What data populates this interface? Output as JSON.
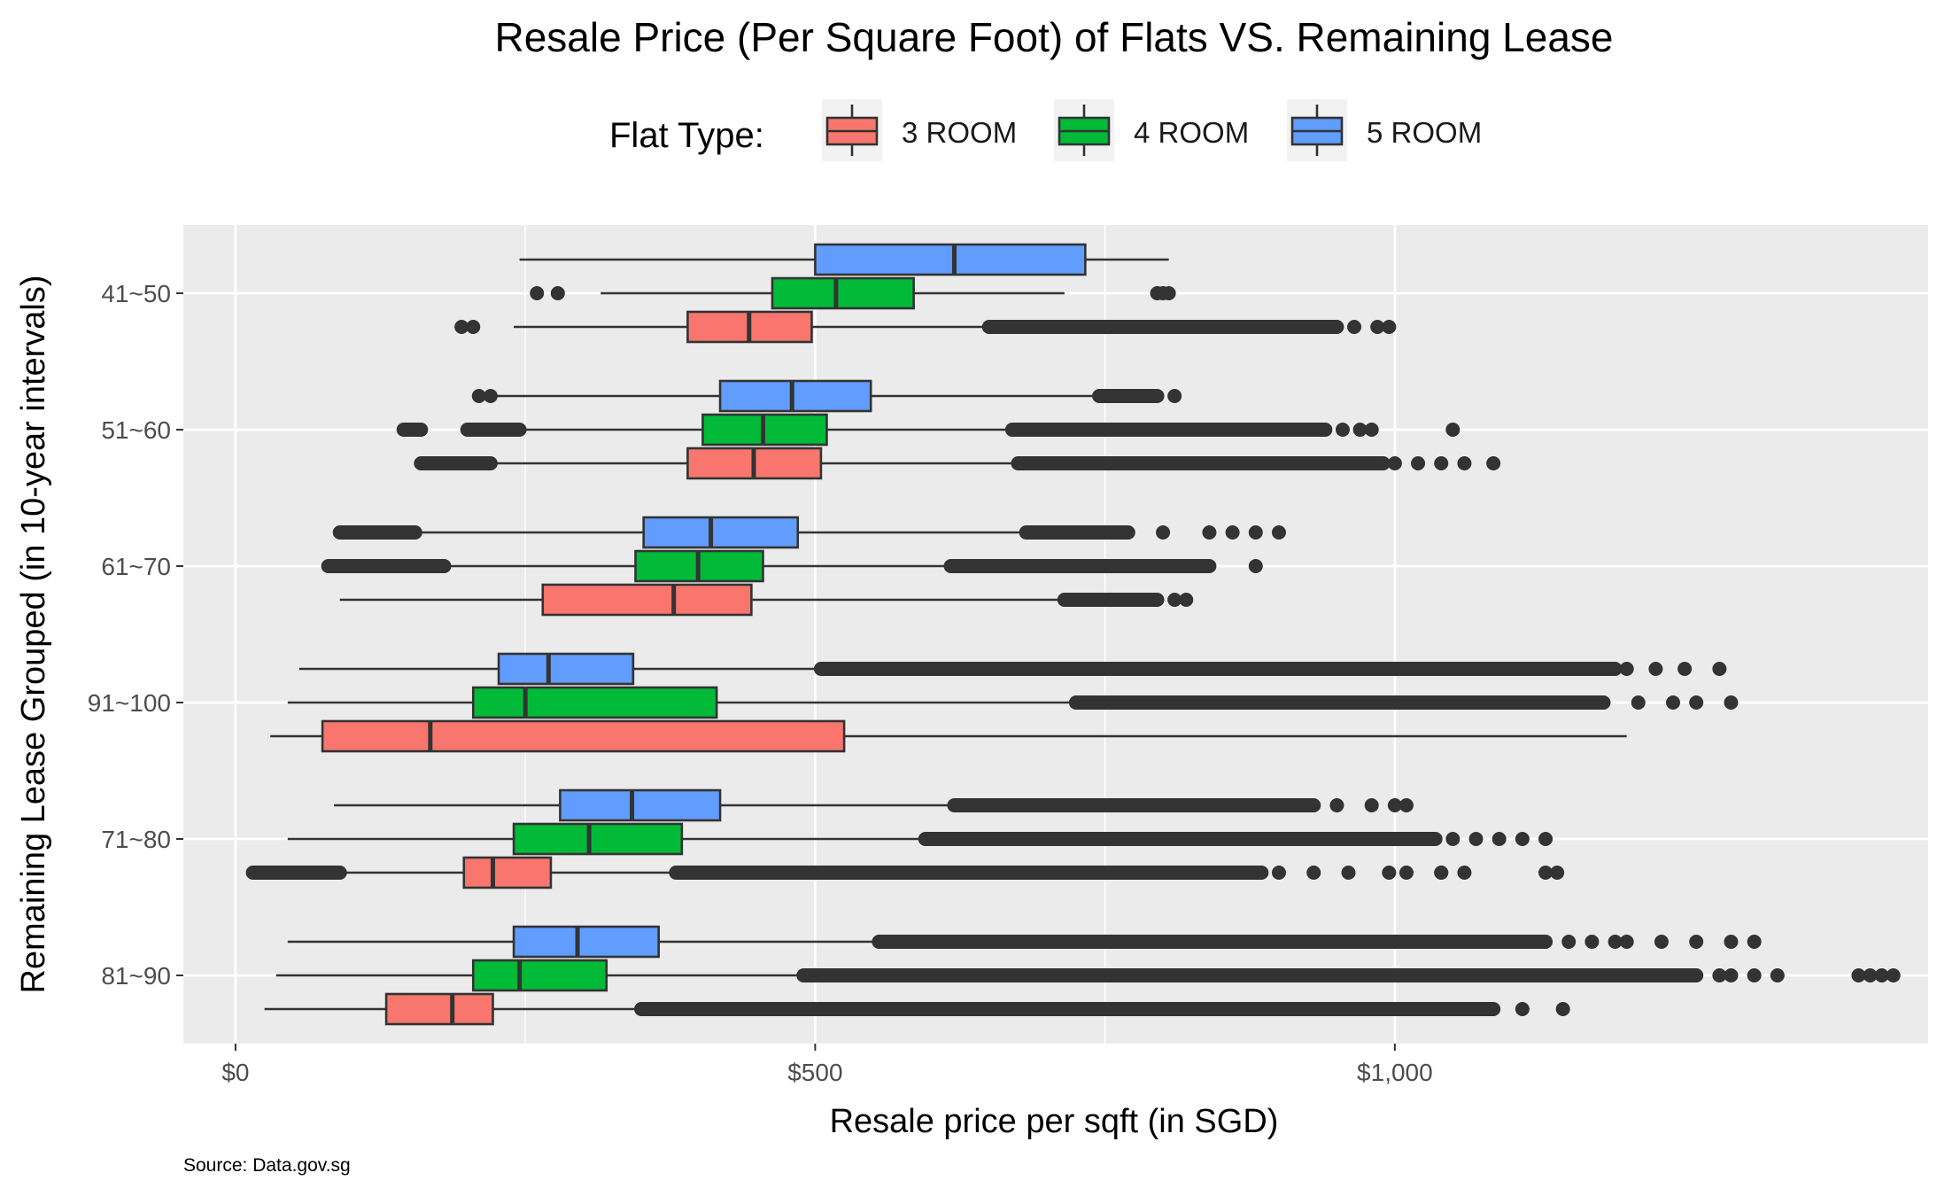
{
  "chart_data": {
    "type": "boxplot",
    "orientation": "horizontal",
    "title": "Resale Price (Per Square Foot) of Flats VS. Remaining Lease",
    "xlabel": "Resale price per sqft (in SGD)",
    "ylabel": "Remaining Lease Grouped (in 10-year intervals)",
    "caption": "Source: Data.gov.sg",
    "legend_title": "Flat Type:",
    "legend_position": "top",
    "grid": true,
    "xlim": [
      -45,
      1460
    ],
    "xticks": [
      0,
      500,
      1000
    ],
    "xtick_labels": [
      "$0",
      "$500",
      "$1,000"
    ],
    "categories": [
      "81~90",
      "71~80",
      "91~100",
      "61~70",
      "51~60",
      "41~50"
    ],
    "colors": {
      "3 ROOM": "#F8766D",
      "4 ROOM": "#00BA38",
      "5 ROOM": "#619CFF",
      "panel": "#EBEBEB",
      "grid": "#FFFFFF",
      "outline": "#333333"
    },
    "series": [
      {
        "name": "3 ROOM",
        "boxes": [
          {
            "category": "81~90",
            "whisker_low": 25,
            "q1": 130,
            "median": 187,
            "q3": 222,
            "whisker_high": 350,
            "outlier_bands": [
              [
                350,
                1085
              ]
            ],
            "outliers": [
              1110,
              1145
            ]
          },
          {
            "category": "71~80",
            "whisker_low": 95,
            "q1": 197,
            "median": 222,
            "q3": 272,
            "whisker_high": 380,
            "outlier_bands": [
              [
                15,
                90
              ],
              [
                380,
                885
              ]
            ],
            "outliers": [
              900,
              930,
              960,
              995,
              1010,
              1040,
              1060,
              1130,
              1140,
              1040
            ]
          },
          {
            "category": "91~100",
            "whisker_low": 30,
            "q1": 75,
            "median": 168,
            "q3": 525,
            "whisker_high": 1200,
            "outlier_bands": [],
            "outliers": []
          },
          {
            "category": "61~70",
            "whisker_low": 90,
            "q1": 265,
            "median": 378,
            "q3": 445,
            "whisker_high": 715,
            "outlier_bands": [
              [
                715,
                795
              ]
            ],
            "outliers": [
              810,
              820
            ]
          },
          {
            "category": "51~60",
            "whisker_low": 220,
            "q1": 390,
            "median": 447,
            "q3": 505,
            "whisker_high": 675,
            "outlier_bands": [
              [
                160,
                220
              ],
              [
                675,
                990
              ]
            ],
            "outliers": [
              1000,
              1020,
              1040,
              1060,
              1085
            ]
          },
          {
            "category": "41~50",
            "whisker_low": 240,
            "q1": 390,
            "median": 443,
            "q3": 497,
            "whisker_high": 650,
            "outlier_bands": [
              [
                650,
                950
              ]
            ],
            "outliers": [
              195,
              205,
              965,
              985,
              995
            ]
          }
        ]
      },
      {
        "name": "4 ROOM",
        "boxes": [
          {
            "category": "81~90",
            "whisker_low": 35,
            "q1": 205,
            "median": 245,
            "q3": 320,
            "whisker_high": 490,
            "outlier_bands": [
              [
                490,
                1260
              ]
            ],
            "outliers": [
              1280,
              1290,
              1310,
              1330,
              1400,
              1410,
              1420,
              1430
            ]
          },
          {
            "category": "71~80",
            "whisker_low": 45,
            "q1": 240,
            "median": 305,
            "q3": 385,
            "whisker_high": 595,
            "outlier_bands": [
              [
                595,
                1035
              ]
            ],
            "outliers": [
              1050,
              1070,
              1090,
              1110,
              1130
            ]
          },
          {
            "category": "91~100",
            "whisker_low": 45,
            "q1": 205,
            "median": 250,
            "q3": 415,
            "whisker_high": 725,
            "outlier_bands": [
              [
                725,
                1180
              ]
            ],
            "outliers": [
              1210,
              1240,
              1260,
              1290
            ]
          },
          {
            "category": "61~70",
            "whisker_low": 80,
            "q1": 345,
            "median": 399,
            "q3": 455,
            "whisker_high": 617,
            "outlier_bands": [
              [
                80,
                180
              ],
              [
                617,
                840
              ]
            ],
            "outliers": [
              880
            ]
          },
          {
            "category": "51~60",
            "whisker_low": 250,
            "q1": 403,
            "median": 455,
            "q3": 510,
            "whisker_high": 670,
            "outlier_bands": [
              [
                145,
                160
              ],
              [
                200,
                245
              ],
              [
                670,
                940
              ]
            ],
            "outliers": [
              955,
              970,
              980,
              1050
            ]
          },
          {
            "category": "41~50",
            "whisker_low": 315,
            "q1": 463,
            "median": 518,
            "q3": 585,
            "whisker_high": 715,
            "outlier_bands": [],
            "outliers": [
              260,
              278,
              795,
              800,
              805
            ]
          }
        ]
      },
      {
        "name": "5 ROOM",
        "boxes": [
          {
            "category": "81~90",
            "whisker_low": 45,
            "q1": 240,
            "median": 295,
            "q3": 365,
            "whisker_high": 555,
            "outlier_bands": [
              [
                555,
                1130
              ]
            ],
            "outliers": [
              1150,
              1170,
              1190,
              1200,
              1230,
              1260,
              1290,
              1310
            ]
          },
          {
            "category": "71~80",
            "whisker_low": 85,
            "q1": 280,
            "median": 342,
            "q3": 418,
            "whisker_high": 620,
            "outlier_bands": [
              [
                620,
                930
              ]
            ],
            "outliers": [
              950,
              980,
              1000,
              1010
            ]
          },
          {
            "category": "91~100",
            "whisker_low": 55,
            "q1": 227,
            "median": 270,
            "q3": 343,
            "whisker_high": 505,
            "outlier_bands": [
              [
                505,
                1190
              ]
            ],
            "outliers": [
              1200,
              1225,
              1250,
              1280
            ]
          },
          {
            "category": "61~70",
            "whisker_low": 105,
            "q1": 352,
            "median": 410,
            "q3": 485,
            "whisker_high": 682,
            "outlier_bands": [
              [
                90,
                155
              ],
              [
                682,
                770
              ]
            ],
            "outliers": [
              800,
              840,
              860,
              880,
              900
            ]
          },
          {
            "category": "51~60",
            "whisker_low": 220,
            "q1": 418,
            "median": 480,
            "q3": 548,
            "whisker_high": 745,
            "outlier_bands": [
              [
                745,
                795
              ]
            ],
            "outliers": [
              210,
              220,
              810
            ]
          },
          {
            "category": "41~50",
            "whisker_low": 245,
            "q1": 500,
            "median": 620,
            "q3": 733,
            "whisker_high": 805,
            "outlier_bands": [],
            "outliers": []
          }
        ]
      }
    ]
  }
}
